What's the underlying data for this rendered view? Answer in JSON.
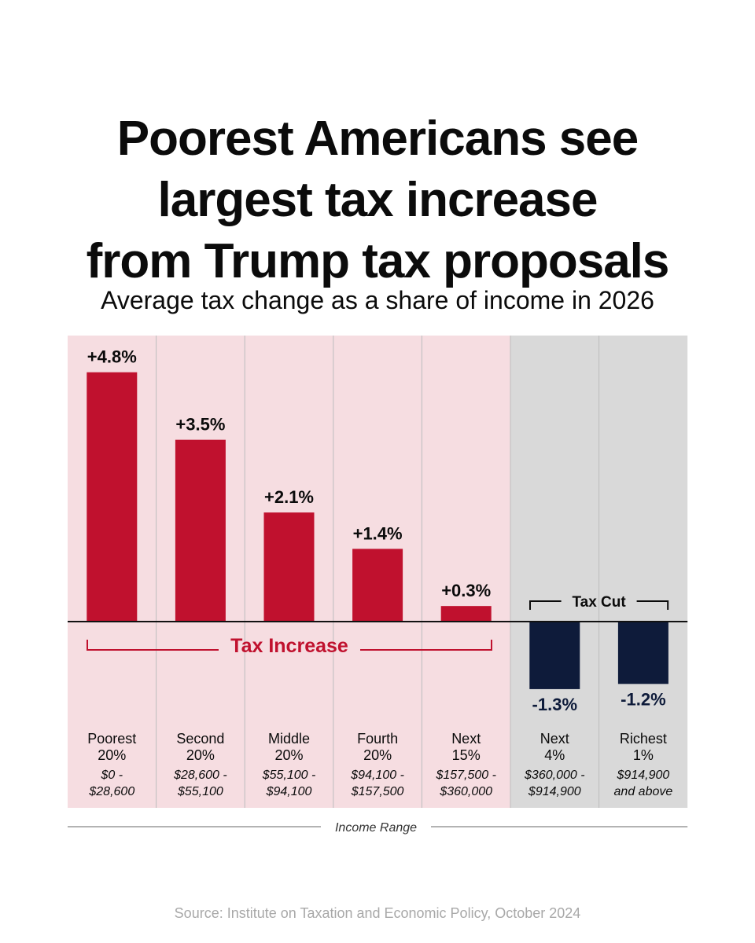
{
  "title_lines": [
    "Poorest Americans see",
    "largest tax increase",
    "from Trump tax proposals"
  ],
  "subtitle": "Average tax change as a share of income in 2026",
  "source": "Source: Institute on Taxation and Economic Policy, October 2024",
  "colors": {
    "increase_bar": "#c0112e",
    "cut_bar": "#0e1b3a",
    "increase_bg": "#f6dde1",
    "cut_bg": "#d9d9d9",
    "divider": "#bdbdbd",
    "text": "#0b0b0b"
  },
  "chart_data": {
    "type": "bar",
    "title": "Average tax change as a share of income in 2026",
    "xlabel": "Income Range",
    "ylabel": "",
    "ylim": [
      -1.3,
      4.8
    ],
    "group_labels": {
      "increase": "Tax Increase",
      "cut": "Tax Cut"
    },
    "categories": [
      {
        "line1": "Poorest",
        "line2": "20%",
        "range1": "$0 -",
        "range2": "$28,600",
        "value": 4.8,
        "label": "+4.8%",
        "group": "increase"
      },
      {
        "line1": "Second",
        "line2": "20%",
        "range1": "$28,600 -",
        "range2": "$55,100",
        "value": 3.5,
        "label": "+3.5%",
        "group": "increase"
      },
      {
        "line1": "Middle",
        "line2": "20%",
        "range1": "$55,100 -",
        "range2": "$94,100",
        "value": 2.1,
        "label": "+2.1%",
        "group": "increase"
      },
      {
        "line1": "Fourth",
        "line2": "20%",
        "range1": "$94,100 -",
        "range2": "$157,500",
        "value": 1.4,
        "label": "+1.4%",
        "group": "increase"
      },
      {
        "line1": "Next",
        "line2": "15%",
        "range1": "$157,500 -",
        "range2": "$360,000",
        "value": 0.3,
        "label": "+0.3%",
        "group": "increase"
      },
      {
        "line1": "Next",
        "line2": "4%",
        "range1": "$360,000 -",
        "range2": "$914,900",
        "value": -1.3,
        "label": "-1.3%",
        "group": "cut"
      },
      {
        "line1": "Richest",
        "line2": "1%",
        "range1": "$914,900",
        "range2": "and above",
        "value": -1.2,
        "label": "-1.2%",
        "group": "cut"
      }
    ]
  }
}
